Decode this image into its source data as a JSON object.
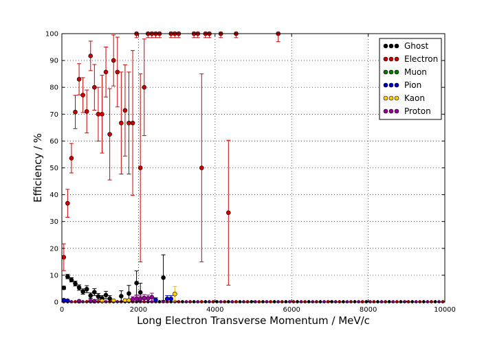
{
  "chart_data": {
    "type": "scatter",
    "xlabel": "Long Electron Transverse Momentum / MeV/c",
    "ylabel": "Efficiency / %",
    "xlim": [
      0,
      10000
    ],
    "ylim": [
      0,
      100
    ],
    "xticks": [
      "0",
      "2000",
      "4000",
      "6000",
      "8000",
      "10000"
    ],
    "yticks": [
      "0",
      "10",
      "20",
      "30",
      "40",
      "50",
      "60",
      "70",
      "80",
      "90",
      "100"
    ],
    "grid": true,
    "legend_position": "top-right",
    "series": [
      {
        "name": "Ghost",
        "color": "#000000",
        "points": [
          {
            "x": 50,
            "y": 5.3,
            "e": 0.6
          },
          {
            "x": 150,
            "y": 9.5,
            "e": 0.8
          },
          {
            "x": 250,
            "y": 8.3,
            "e": 0.8
          },
          {
            "x": 350,
            "y": 6.9,
            "e": 0.9
          },
          {
            "x": 450,
            "y": 5.4,
            "e": 1.0
          },
          {
            "x": 550,
            "y": 3.9,
            "e": 1.0
          },
          {
            "x": 650,
            "y": 4.8,
            "e": 1.3
          },
          {
            "x": 750,
            "y": 2.4,
            "e": 1.0
          },
          {
            "x": 850,
            "y": 3.7,
            "e": 1.3
          },
          {
            "x": 950,
            "y": 2.1,
            "e": 1.1
          },
          {
            "x": 1050,
            "y": 1.4,
            "e": 1.0
          },
          {
            "x": 1150,
            "y": 2.6,
            "e": 1.4
          },
          {
            "x": 1250,
            "y": 1.3,
            "e": 1.1
          },
          {
            "x": 1550,
            "y": 2.2,
            "e": 2.0
          },
          {
            "x": 1750,
            "y": 3.2,
            "e": 3.0
          },
          {
            "x": 1950,
            "y": 7.1,
            "e": 4.5
          },
          {
            "x": 2050,
            "y": 3.6,
            "e": 3.4
          },
          {
            "x": 2650,
            "y": 9.1,
            "e": 8.5
          }
        ]
      },
      {
        "name": "Electron",
        "color": "#cc0000",
        "points": [
          {
            "x": 50,
            "y": 16.7,
            "e": 5.0
          },
          {
            "x": 150,
            "y": 36.8,
            "e": 5.2
          },
          {
            "x": 250,
            "y": 53.6,
            "e": 5.5
          },
          {
            "x": 350,
            "y": 70.8,
            "e": 6.2
          },
          {
            "x": 450,
            "y": 83.0,
            "e": 5.8
          },
          {
            "x": 550,
            "y": 77.1,
            "e": 6.5
          },
          {
            "x": 650,
            "y": 71.0,
            "e": 8.0
          },
          {
            "x": 750,
            "y": 91.7,
            "e": 5.5
          },
          {
            "x": 850,
            "y": 80.0,
            "e": 8.5
          },
          {
            "x": 950,
            "y": 70.0,
            "e": 10.0
          },
          {
            "x": 1050,
            "y": 70.0,
            "e": 14.5
          },
          {
            "x": 1150,
            "y": 85.7,
            "e": 9.3
          },
          {
            "x": 1250,
            "y": 62.5,
            "e": 17.0
          },
          {
            "x": 1350,
            "y": 90.0,
            "e": 9.5
          },
          {
            "x": 1450,
            "y": 85.7,
            "e": 13.0
          },
          {
            "x": 1550,
            "y": 66.7,
            "e": 19.0
          },
          {
            "x": 1650,
            "y": 71.4,
            "e": 17.0
          },
          {
            "x": 1750,
            "y": 66.7,
            "e": 19.0
          },
          {
            "x": 1850,
            "y": 66.7,
            "e": 27.0
          },
          {
            "x": 1950,
            "y": 100,
            "e": 1.5
          },
          {
            "x": 2050,
            "y": 50.0,
            "e": 35.0
          },
          {
            "x": 2150,
            "y": 80.0,
            "e": 18.0
          },
          {
            "x": 2250,
            "y": 100,
            "e": 1.5
          },
          {
            "x": 2350,
            "y": 100,
            "e": 1.5
          },
          {
            "x": 2450,
            "y": 100,
            "e": 1.5
          },
          {
            "x": 2550,
            "y": 100,
            "e": 1.5
          },
          {
            "x": 2850,
            "y": 100,
            "e": 1.5
          },
          {
            "x": 2950,
            "y": 100,
            "e": 1.5
          },
          {
            "x": 3050,
            "y": 100,
            "e": 1.5
          },
          {
            "x": 3450,
            "y": 100,
            "e": 1.5
          },
          {
            "x": 3550,
            "y": 100,
            "e": 1.5
          },
          {
            "x": 3650,
            "y": 50.0,
            "e": 35.0
          },
          {
            "x": 3750,
            "y": 100,
            "e": 1.5
          },
          {
            "x": 3850,
            "y": 100,
            "e": 1.5
          },
          {
            "x": 4150,
            "y": 100,
            "e": 1.5
          },
          {
            "x": 4350,
            "y": 33.3,
            "e": 27.0
          },
          {
            "x": 4550,
            "y": 100,
            "e": 1.5
          },
          {
            "x": 5650,
            "y": 100,
            "e": 3.0
          }
        ]
      },
      {
        "name": "Muon",
        "color": "#007700",
        "points": []
      },
      {
        "name": "Pion",
        "color": "#0000cc",
        "points": [
          {
            "x": 50,
            "y": 0.7,
            "e": 0.3
          },
          {
            "x": 150,
            "y": 0.5,
            "e": 0.3
          },
          {
            "x": 2450,
            "y": 0.8,
            "e": 0.8
          },
          {
            "x": 2750,
            "y": 1.2,
            "e": 1.2
          },
          {
            "x": 2850,
            "y": 1.2,
            "e": 1.2
          }
        ]
      },
      {
        "name": "Kaon",
        "color": "#ffcc00",
        "points": [
          {
            "x": 1050,
            "y": 0.4,
            "e": 0.4
          },
          {
            "x": 1350,
            "y": 0.5,
            "e": 0.5
          },
          {
            "x": 1650,
            "y": 0.6,
            "e": 0.6
          },
          {
            "x": 1750,
            "y": 0.6,
            "e": 0.6
          },
          {
            "x": 2950,
            "y": 3.0,
            "e": 2.8
          }
        ]
      },
      {
        "name": "Proton",
        "color": "#990099",
        "points": [
          {
            "x": 450,
            "y": 0.3,
            "e": 0.3
          },
          {
            "x": 750,
            "y": 0.4,
            "e": 0.4
          },
          {
            "x": 850,
            "y": 0.3,
            "e": 0.3
          },
          {
            "x": 1850,
            "y": 1.0,
            "e": 1.0
          },
          {
            "x": 1950,
            "y": 1.3,
            "e": 1.2
          },
          {
            "x": 2050,
            "y": 1.2,
            "e": 1.1
          },
          {
            "x": 2150,
            "y": 1.5,
            "e": 1.3
          },
          {
            "x": 2250,
            "y": 1.4,
            "e": 1.2
          },
          {
            "x": 2350,
            "y": 1.8,
            "e": 1.5
          }
        ]
      }
    ]
  }
}
